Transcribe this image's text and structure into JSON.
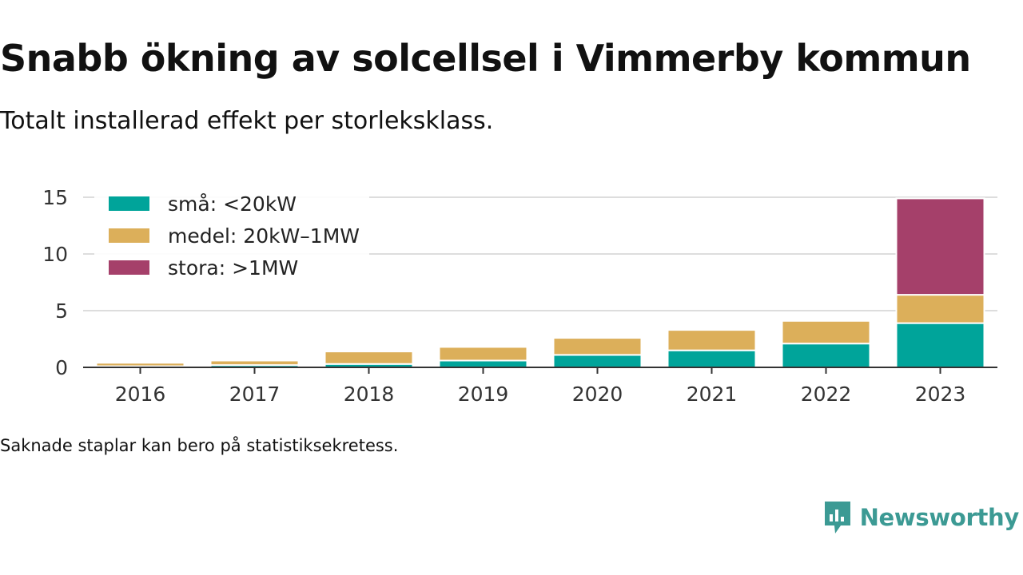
{
  "title": "Snabb ökning av solcellsel i Vimmerby kommun",
  "subtitle": "Totalt installerad effekt per storleksklass.",
  "note": "Saknade staplar kan bero på statistiksekretess.",
  "brand": {
    "name": "Newsworthy",
    "icon": "newsworthy-logo-icon",
    "color": "#3c9a94"
  },
  "chart_data": {
    "type": "bar",
    "stacked": true,
    "categories": [
      "2016",
      "2017",
      "2018",
      "2019",
      "2020",
      "2021",
      "2022",
      "2023"
    ],
    "series": [
      {
        "name": "små: <20kW",
        "color": "#00a49a",
        "values": [
          0.1,
          0.2,
          0.3,
          0.6,
          1.1,
          1.5,
          2.1,
          3.9
        ]
      },
      {
        "name": "medel: 20kW–1MW",
        "color": "#dcaf5a",
        "values": [
          0.3,
          0.4,
          1.1,
          1.2,
          1.5,
          1.8,
          2.0,
          2.5
        ]
      },
      {
        "name": "stora: >1MW",
        "color": "#a5406a",
        "values": [
          0,
          0,
          0,
          0,
          0,
          0,
          0,
          8.5
        ]
      }
    ],
    "yticks": [
      0,
      5,
      10,
      15
    ],
    "ylim": [
      0,
      15
    ],
    "xlabel": "",
    "ylabel": "",
    "grid": true,
    "legend": "top-left"
  }
}
